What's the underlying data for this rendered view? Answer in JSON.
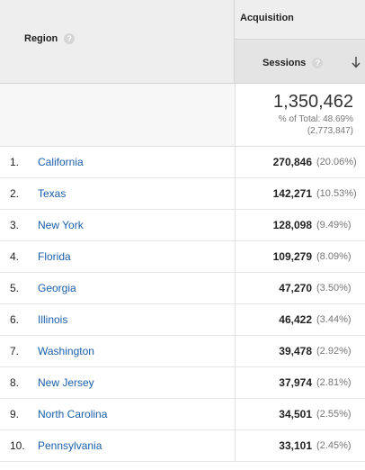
{
  "header": {
    "region_label": "Region",
    "acquisition_label": "Acquisition",
    "sessions_label": "Sessions",
    "help_glyph": "?"
  },
  "totals": {
    "value": "1,350,462",
    "pct_text": "% of Total: 48.69%",
    "abs_text": "(2,773,847)"
  },
  "rows": [
    {
      "num": "1.",
      "name": "California",
      "value": "270,846",
      "pct": "(20.06%)"
    },
    {
      "num": "2.",
      "name": "Texas",
      "value": "142,271",
      "pct": "(10.53%)"
    },
    {
      "num": "3.",
      "name": "New York",
      "value": "128,098",
      "pct": "(9.49%)"
    },
    {
      "num": "4.",
      "name": "Florida",
      "value": "109,279",
      "pct": "(8.09%)"
    },
    {
      "num": "5.",
      "name": "Georgia",
      "value": "47,270",
      "pct": "(3.50%)"
    },
    {
      "num": "6.",
      "name": "Illinois",
      "value": "46,422",
      "pct": "(3.44%)"
    },
    {
      "num": "7.",
      "name": "Washington",
      "value": "39,478",
      "pct": "(2.92%)"
    },
    {
      "num": "8.",
      "name": "New Jersey",
      "value": "37,974",
      "pct": "(2.81%)"
    },
    {
      "num": "9.",
      "name": "North Carolina",
      "value": "34,501",
      "pct": "(2.55%)"
    },
    {
      "num": "10.",
      "name": "Pennsylvania",
      "value": "33,101",
      "pct": "(2.45%)"
    }
  ],
  "icons": {
    "help": "help-circle-icon",
    "sort": "arrow-down-icon"
  },
  "colors": {
    "link": "#1a5ea8",
    "header_bg": "#eeeeee"
  }
}
